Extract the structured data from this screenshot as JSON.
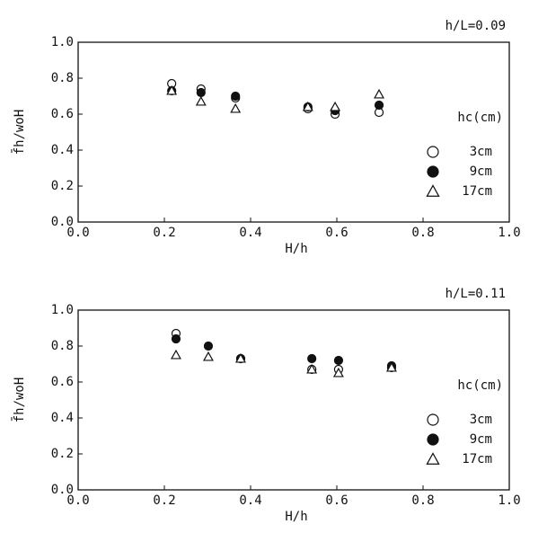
{
  "chart_data": [
    {
      "type": "scatter",
      "annotation": "h/L=0.09",
      "xlabel": "H/h",
      "ylabel": "f̄h/woH",
      "legend_title": "hc(cm)",
      "xlim": [
        0,
        1
      ],
      "ylim": [
        0,
        1
      ],
      "xticks": [
        {
          "value": 0,
          "label": "0.0"
        },
        0.2,
        0.4,
        0.6,
        0.8,
        {
          "value": 1,
          "label": "1.0"
        }
      ],
      "yticks": [
        {
          "value": 0,
          "label": "0.0"
        },
        0.2,
        0.4,
        0.6,
        0.8,
        {
          "value": 1,
          "label": "1.0"
        }
      ],
      "series": [
        {
          "name": "3cm",
          "marker": "open-circle",
          "color": "#111111",
          "x": [
            0.217,
            0.285,
            0.365,
            0.533,
            0.596,
            0.698
          ],
          "values": [
            0.77,
            0.74,
            0.69,
            0.63,
            0.6,
            0.61
          ]
        },
        {
          "name": "9cm",
          "marker": "filled-circle",
          "color": "#111111",
          "x": [
            0.217,
            0.285,
            0.365,
            0.533,
            0.596,
            0.698
          ],
          "values": [
            0.73,
            0.72,
            0.7,
            0.64,
            0.62,
            0.65
          ]
        },
        {
          "name": "17cm",
          "marker": "open-triangle",
          "color": "#111111",
          "x": [
            0.217,
            0.285,
            0.365,
            0.533,
            0.596,
            0.698
          ],
          "values": [
            0.73,
            0.67,
            0.63,
            0.64,
            0.64,
            0.71
          ]
        }
      ]
    },
    {
      "type": "scatter",
      "annotation": "h/L=0.11",
      "xlabel": "H/h",
      "ylabel": "f̄h/woH",
      "legend_title": "hc(cm)",
      "xlim": [
        0,
        1
      ],
      "ylim": [
        0,
        1
      ],
      "xticks": [
        {
          "value": 0,
          "label": "0.0"
        },
        0.2,
        0.4,
        0.6,
        0.8,
        {
          "value": 1,
          "label": "1.0"
        }
      ],
      "yticks": [
        {
          "value": 0,
          "label": "0.0"
        },
        0.2,
        0.4,
        0.6,
        0.8,
        {
          "value": 1,
          "label": "1.0"
        }
      ],
      "series": [
        {
          "name": "3cm",
          "marker": "open-circle",
          "color": "#111111",
          "x": [
            0.227,
            0.377,
            0.542,
            0.604,
            0.727
          ],
          "values": [
            0.87,
            0.73,
            0.67,
            0.67,
            0.68
          ]
        },
        {
          "name": "9cm",
          "marker": "filled-circle",
          "color": "#111111",
          "x": [
            0.227,
            0.302,
            0.377,
            0.542,
            0.604,
            0.727
          ],
          "values": [
            0.84,
            0.8,
            0.73,
            0.73,
            0.72,
            0.69
          ]
        },
        {
          "name": "17cm",
          "marker": "open-triangle",
          "color": "#111111",
          "x": [
            0.227,
            0.302,
            0.377,
            0.542,
            0.604,
            0.727
          ],
          "values": [
            0.75,
            0.74,
            0.73,
            0.67,
            0.65,
            0.68
          ]
        }
      ]
    }
  ]
}
